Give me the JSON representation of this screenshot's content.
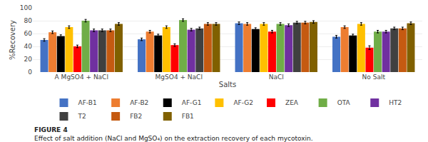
{
  "chart_data": {
    "type": "bar",
    "categories": [
      "A MgSO4 + NaCl",
      "MgSO4 + NaCl",
      "NaCl",
      "No Salt"
    ],
    "series": [
      {
        "name": "AF-B1",
        "color": "#4472C4",
        "values": [
          50,
          51,
          76,
          55
        ],
        "errors": [
          2,
          2,
          2,
          2
        ]
      },
      {
        "name": "AF-B2",
        "color": "#ED7D31",
        "values": [
          62,
          63,
          75,
          70
        ],
        "errors": [
          2,
          2,
          2,
          2
        ]
      },
      {
        "name": "AF-G1",
        "color": "#000000",
        "values": [
          56,
          57,
          67,
          57
        ],
        "errors": [
          2,
          2,
          2,
          2
        ]
      },
      {
        "name": "AF-G2",
        "color": "#FFC000",
        "values": [
          70,
          70,
          75,
          75
        ],
        "errors": [
          2,
          2,
          2,
          2
        ]
      },
      {
        "name": "ZEA",
        "color": "#FF0000",
        "values": [
          40,
          42,
          63,
          38
        ],
        "errors": [
          2,
          2,
          2,
          3
        ]
      },
      {
        "name": "OTA",
        "color": "#70AD47",
        "values": [
          80,
          81,
          75,
          63
        ],
        "errors": [
          2,
          2,
          2,
          2
        ]
      },
      {
        "name": "HT2",
        "color": "#7030A0",
        "values": [
          65,
          66,
          73,
          63
        ],
        "errors": [
          2,
          2,
          2,
          2
        ]
      },
      {
        "name": "T2",
        "color": "#404040",
        "values": [
          65,
          68,
          77,
          68
        ],
        "errors": [
          2,
          2,
          2,
          2
        ]
      },
      {
        "name": "FB2",
        "color": "#C55A11",
        "values": [
          65,
          75,
          77,
          68
        ],
        "errors": [
          2,
          2,
          2,
          2
        ]
      },
      {
        "name": "FB1",
        "color": "#806000",
        "values": [
          75,
          75,
          78,
          76
        ],
        "errors": [
          2,
          2,
          2,
          2
        ]
      }
    ],
    "xlabel": "Salts",
    "ylabel": "%Recovery",
    "ylim": [
      0,
      100
    ],
    "yticks": [
      0,
      20,
      40,
      60,
      80,
      100
    ],
    "grid": true,
    "legend": "bottom",
    "annotations": [
      "FIGURE 4",
      "Effect of salt addition (NaCl and MgSO₄) on the extraction recovery of each mycotoxin."
    ]
  }
}
